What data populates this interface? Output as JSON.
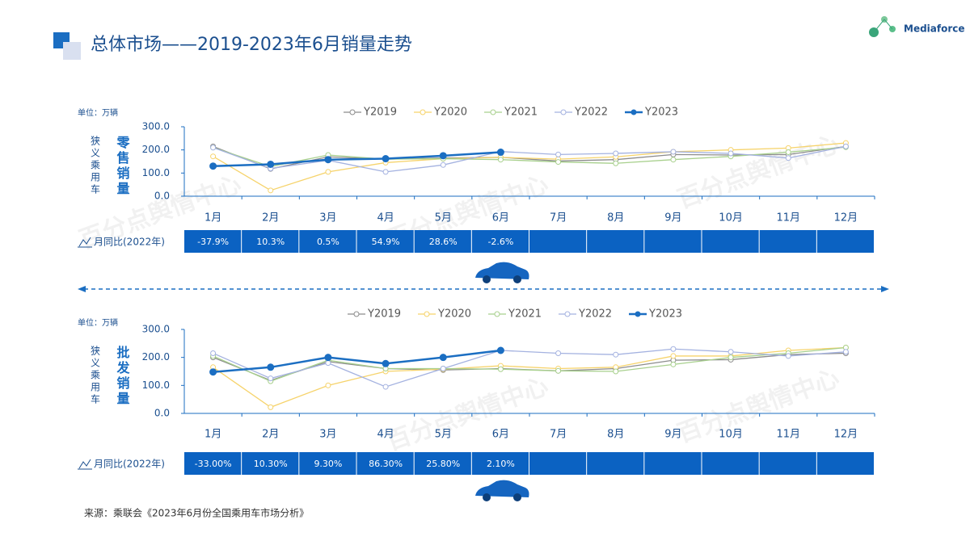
{
  "header": {
    "title": "总体市场——2019-2023年6月销量走势",
    "logo": "Mediaforce"
  },
  "watermark": "百分点舆情中心",
  "source": "来源：乘联会《2023年6月份全国乘用车市场分析》",
  "chart_data": [
    {
      "type": "line",
      "title": "零售销量",
      "side_label": "狭义乘用车",
      "unit": "单位：万辆",
      "categories": [
        "1月",
        "2月",
        "3月",
        "4月",
        "5月",
        "6月",
        "7月",
        "8月",
        "9月",
        "10月",
        "11月",
        "12月"
      ],
      "ylim": [
        0,
        300
      ],
      "yticks": [
        {
          "value": 0,
          "label": "0.0"
        },
        {
          "value": 100,
          "label": "100.0"
        },
        {
          "value": 200,
          "label": "200.0"
        },
        {
          "value": 300,
          "label": "300.0"
        }
      ],
      "series": [
        {
          "name": "Y2019",
          "color": "#8c8c8c",
          "values": [
            215,
            118,
            170,
            160,
            165,
            168,
            152,
            158,
            180,
            178,
            180,
            215
          ]
        },
        {
          "name": "Y2020",
          "color": "#f6d36b",
          "values": [
            172,
            25,
            105,
            145,
            162,
            168,
            160,
            170,
            192,
            200,
            208,
            230
          ]
        },
        {
          "name": "Y2021",
          "color": "#a8d08d",
          "values": [
            210,
            128,
            178,
            160,
            162,
            158,
            148,
            142,
            158,
            172,
            190,
            212
          ]
        },
        {
          "name": "Y2022",
          "color": "#a4b2e0",
          "values": [
            210,
            120,
            155,
            105,
            135,
            193,
            180,
            185,
            192,
            185,
            165,
            215
          ]
        },
        {
          "name": "Y2023",
          "color": "#1b6ec2",
          "values": [
            130,
            138,
            158,
            162,
            175,
            190,
            null,
            null,
            null,
            null,
            null,
            null
          ]
        }
      ],
      "yoy_label": "月同比(2022年)",
      "yoy": [
        "-37.9%",
        "10.3%",
        "0.5%",
        "54.9%",
        "28.6%",
        "-2.6%"
      ]
    },
    {
      "type": "line",
      "title": "批发销量",
      "side_label": "狭义乘用车",
      "unit": "单位：万辆",
      "categories": [
        "1月",
        "2月",
        "3月",
        "4月",
        "5月",
        "6月",
        "7月",
        "8月",
        "9月",
        "10月",
        "11月",
        "12月"
      ],
      "ylim": [
        0,
        300
      ],
      "yticks": [
        {
          "value": 0,
          "label": "0.0"
        },
        {
          "value": 100,
          "label": "100.0"
        },
        {
          "value": 200,
          "label": "200.0"
        },
        {
          "value": 300,
          "label": "300.0"
        }
      ],
      "series": [
        {
          "name": "Y2019",
          "color": "#8c8c8c",
          "values": [
            200,
            118,
            185,
            160,
            155,
            160,
            152,
            160,
            190,
            192,
            210,
            215
          ]
        },
        {
          "name": "Y2020",
          "color": "#f6d36b",
          "values": [
            165,
            22,
            100,
            150,
            158,
            170,
            160,
            165,
            205,
            205,
            225,
            235
          ]
        },
        {
          "name": "Y2021",
          "color": "#a8d08d",
          "values": [
            205,
            115,
            190,
            160,
            160,
            158,
            152,
            150,
            175,
            200,
            215,
            235
          ]
        },
        {
          "name": "Y2022",
          "color": "#a4b2e0",
          "values": [
            215,
            125,
            180,
            95,
            160,
            225,
            215,
            210,
            230,
            220,
            205,
            220
          ]
        },
        {
          "name": "Y2023",
          "color": "#1b6ec2",
          "values": [
            148,
            165,
            200,
            178,
            200,
            225,
            null,
            null,
            null,
            null,
            null,
            null
          ]
        }
      ],
      "yoy_label": "月同比(2022年)",
      "yoy": [
        "-33.00%",
        "10.30%",
        "9.30%",
        "86.30%",
        "25.80%",
        "2.10%"
      ]
    }
  ]
}
